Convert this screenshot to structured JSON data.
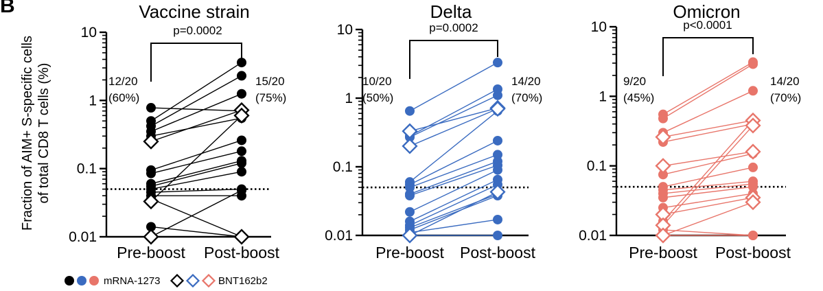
{
  "panel_letter": "B",
  "ylabel_line1": "Fraction of AIM+ S-specific cells",
  "ylabel_line2": "of total CD8 T cells (%)",
  "legend": {
    "mrna_label": "mRNA-1273",
    "bnt_label": "BNT162b2"
  },
  "chart_data": [
    {
      "type": "scatter",
      "title": "Vaccine strain",
      "color": "#000000",
      "categories": [
        "Pre-boost",
        "Post-boost"
      ],
      "yscale": "log",
      "ylim": [
        0.01,
        10
      ],
      "yticks": [
        "0.01",
        "0.1",
        "1",
        "10"
      ],
      "threshold": 0.05,
      "pvalue": "p=0.0002",
      "pre_text": [
        "12/20",
        "(60%)"
      ],
      "post_text": [
        "15/20",
        "(75%)"
      ],
      "series": [
        {
          "values": [
            0.78,
            0.7
          ],
          "vaccine": "mRNA-1273"
        },
        {
          "values": [
            0.5,
            3.6
          ],
          "vaccine": "mRNA-1273"
        },
        {
          "values": [
            0.42,
            2.3
          ],
          "vaccine": "mRNA-1273"
        },
        {
          "values": [
            0.35,
            1.25
          ],
          "vaccine": "mRNA-1273"
        },
        {
          "values": [
            0.3,
            0.55
          ],
          "vaccine": "mRNA-1273"
        },
        {
          "values": [
            0.25,
            0.72
          ],
          "vaccine": "BNT162b2"
        },
        {
          "values": [
            0.095,
            0.26
          ],
          "vaccine": "mRNA-1273"
        },
        {
          "values": [
            0.085,
            0.18
          ],
          "vaccine": "mRNA-1273"
        },
        {
          "values": [
            0.06,
            0.13
          ],
          "vaccine": "mRNA-1273"
        },
        {
          "values": [
            0.055,
            0.12
          ],
          "vaccine": "mRNA-1273"
        },
        {
          "values": [
            0.05,
            0.09
          ],
          "vaccine": "mRNA-1273"
        },
        {
          "values": [
            0.045,
            0.05
          ],
          "vaccine": "mRNA-1273"
        },
        {
          "values": [
            0.04,
            0.04
          ],
          "vaccine": "mRNA-1273"
        },
        {
          "values": [
            0.033,
            0.6
          ],
          "vaccine": "BNT162b2"
        },
        {
          "values": [
            0.036,
            0.01
          ],
          "vaccine": "mRNA-1273"
        },
        {
          "values": [
            0.014,
            0.01
          ],
          "vaccine": "mRNA-1273"
        },
        {
          "values": [
            0.01,
            0.048
          ],
          "vaccine": "mRNA-1273"
        },
        {
          "values": [
            0.01,
            0.01
          ],
          "vaccine": "BNT162b2"
        }
      ]
    },
    {
      "type": "scatter",
      "title": "Delta",
      "color": "#3a6bc0",
      "categories": [
        "Pre-boost",
        "Post-boost"
      ],
      "yscale": "log",
      "ylim": [
        0.01,
        10
      ],
      "yticks": [
        "0.01",
        "0.1",
        "1",
        "10"
      ],
      "threshold": 0.05,
      "pvalue": "p=0.0002",
      "pre_text": [
        "10/20",
        "(50%)"
      ],
      "post_text": [
        "14/20",
        "(70%)"
      ],
      "series": [
        {
          "values": [
            0.65,
            3.3
          ],
          "vaccine": "mRNA-1273"
        },
        {
          "values": [
            0.33,
            0.72
          ],
          "vaccine": "BNT162b2"
        },
        {
          "values": [
            0.28,
            1.35
          ],
          "vaccine": "mRNA-1273"
        },
        {
          "values": [
            0.27,
            1.1
          ],
          "vaccine": "mRNA-1273"
        },
        {
          "values": [
            0.2,
            0.7
          ],
          "vaccine": "BNT162b2"
        },
        {
          "values": [
            0.06,
            0.65
          ],
          "vaccine": "mRNA-1273"
        },
        {
          "values": [
            0.055,
            0.24
          ],
          "vaccine": "mRNA-1273"
        },
        {
          "values": [
            0.05,
            0.15
          ],
          "vaccine": "mRNA-1273"
        },
        {
          "values": [
            0.04,
            0.12
          ],
          "vaccine": "mRNA-1273"
        },
        {
          "values": [
            0.038,
            0.105
          ],
          "vaccine": "mRNA-1273"
        },
        {
          "values": [
            0.022,
            0.09
          ],
          "vaccine": "mRNA-1273"
        },
        {
          "values": [
            0.016,
            0.065
          ],
          "vaccine": "mRNA-1273"
        },
        {
          "values": [
            0.014,
            0.055
          ],
          "vaccine": "mRNA-1273"
        },
        {
          "values": [
            0.013,
            0.04
          ],
          "vaccine": "mRNA-1273"
        },
        {
          "values": [
            0.012,
            0.038
          ],
          "vaccine": "mRNA-1273"
        },
        {
          "values": [
            0.011,
            0.017
          ],
          "vaccine": "mRNA-1273"
        },
        {
          "values": [
            0.01,
            0.043
          ],
          "vaccine": "BNT162b2"
        },
        {
          "values": [
            0.01,
            0.01
          ],
          "vaccine": "mRNA-1273"
        }
      ]
    },
    {
      "type": "scatter",
      "title": "Omicron",
      "color": "#e8756a",
      "categories": [
        "Pre-boost",
        "Post-boost"
      ],
      "yscale": "log",
      "ylim": [
        0.01,
        10
      ],
      "yticks": [
        "0.01",
        "0.1",
        "1",
        "10"
      ],
      "threshold": 0.05,
      "pvalue": "p<0.0001",
      "pre_text": [
        "9/20",
        "(45%)"
      ],
      "post_text": [
        "14/20",
        "(70%)"
      ],
      "series": [
        {
          "values": [
            0.55,
            3.1
          ],
          "vaccine": "mRNA-1273"
        },
        {
          "values": [
            0.48,
            2.9
          ],
          "vaccine": "mRNA-1273"
        },
        {
          "values": [
            0.3,
            1.2
          ],
          "vaccine": "mRNA-1273"
        },
        {
          "values": [
            0.26,
            0.45
          ],
          "vaccine": "BNT162b2"
        },
        {
          "values": [
            0.22,
            0.4
          ],
          "vaccine": "mRNA-1273"
        },
        {
          "values": [
            0.1,
            0.16
          ],
          "vaccine": "BNT162b2"
        },
        {
          "values": [
            0.075,
            0.15
          ],
          "vaccine": "mRNA-1273"
        },
        {
          "values": [
            0.05,
            0.095
          ],
          "vaccine": "mRNA-1273"
        },
        {
          "values": [
            0.045,
            0.06
          ],
          "vaccine": "mRNA-1273"
        },
        {
          "values": [
            0.04,
            0.055
          ],
          "vaccine": "mRNA-1273"
        },
        {
          "values": [
            0.035,
            0.05
          ],
          "vaccine": "mRNA-1273"
        },
        {
          "values": [
            0.025,
            0.04
          ],
          "vaccine": "mRNA-1273"
        },
        {
          "values": [
            0.02,
            0.035
          ],
          "vaccine": "BNT162b2"
        },
        {
          "values": [
            0.016,
            0.45
          ],
          "vaccine": "mRNA-1273"
        },
        {
          "values": [
            0.014,
            0.38
          ],
          "vaccine": "BNT162b2"
        },
        {
          "values": [
            0.012,
            0.01
          ],
          "vaccine": "mRNA-1273"
        },
        {
          "values": [
            0.01,
            0.01
          ],
          "vaccine": "mRNA-1273"
        },
        {
          "values": [
            0.01,
            0.03
          ],
          "vaccine": "BNT162b2"
        }
      ]
    }
  ]
}
